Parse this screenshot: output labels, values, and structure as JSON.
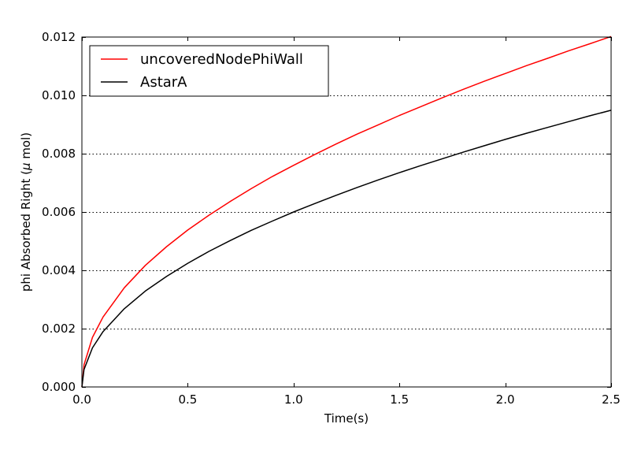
{
  "chart_data": {
    "type": "line",
    "xlabel": "Time(s)",
    "ylabel": "phi Absorbed Right (",
    "ylabel_symbol": "μ",
    "ylabel_unit": " mol)",
    "xlim": [
      0.0,
      2.5
    ],
    "ylim": [
      0.0,
      0.012
    ],
    "xticks": [
      0.0,
      0.5,
      1.0,
      1.5,
      2.0,
      2.5
    ],
    "xtick_labels": [
      "0.0",
      "0.5",
      "1.0",
      "1.5",
      "2.0",
      "2.5"
    ],
    "yticks": [
      0.0,
      0.002,
      0.004,
      0.006,
      0.008,
      0.01,
      0.012
    ],
    "ytick_labels": [
      "0.000",
      "0.002",
      "0.004",
      "0.006",
      "0.008",
      "0.010",
      "0.012"
    ],
    "grid": "y-dotted",
    "legend_position": "top-left",
    "series": [
      {
        "name": "uncoveredNodePhiWall",
        "color": "#ff0000",
        "x": [
          0.0,
          0.01,
          0.05,
          0.1,
          0.2,
          0.3,
          0.4,
          0.5,
          0.6,
          0.7,
          0.8,
          0.9,
          1.0,
          1.1,
          1.2,
          1.3,
          1.4,
          1.5,
          1.6,
          1.7,
          1.8,
          1.9,
          2.0,
          2.1,
          2.2,
          2.3,
          2.4,
          2.5
        ],
        "y": [
          0.0,
          0.00076,
          0.0017,
          0.0024,
          0.0034,
          0.00417,
          0.00481,
          0.00538,
          0.00589,
          0.00636,
          0.0068,
          0.00722,
          0.0076,
          0.00797,
          0.00833,
          0.00867,
          0.00899,
          0.00931,
          0.00961,
          0.00991,
          0.0102,
          0.01048,
          0.01075,
          0.01102,
          0.01127,
          0.01153,
          0.01177,
          0.01202
        ]
      },
      {
        "name": "AstarA",
        "color": "#000000",
        "x": [
          0.0,
          0.01,
          0.05,
          0.1,
          0.2,
          0.3,
          0.4,
          0.5,
          0.6,
          0.7,
          0.8,
          0.9,
          1.0,
          1.1,
          1.2,
          1.3,
          1.4,
          1.5,
          1.6,
          1.7,
          1.8,
          1.9,
          2.0,
          2.1,
          2.2,
          2.3,
          2.4,
          2.5
        ],
        "y": [
          0.0,
          0.0006,
          0.00134,
          0.0019,
          0.00268,
          0.00329,
          0.00379,
          0.00424,
          0.00465,
          0.00502,
          0.00537,
          0.00569,
          0.006,
          0.00629,
          0.00657,
          0.00684,
          0.0071,
          0.00735,
          0.00759,
          0.00782,
          0.00805,
          0.00827,
          0.00849,
          0.0087,
          0.0089,
          0.0091,
          0.0093,
          0.00949
        ]
      }
    ]
  }
}
